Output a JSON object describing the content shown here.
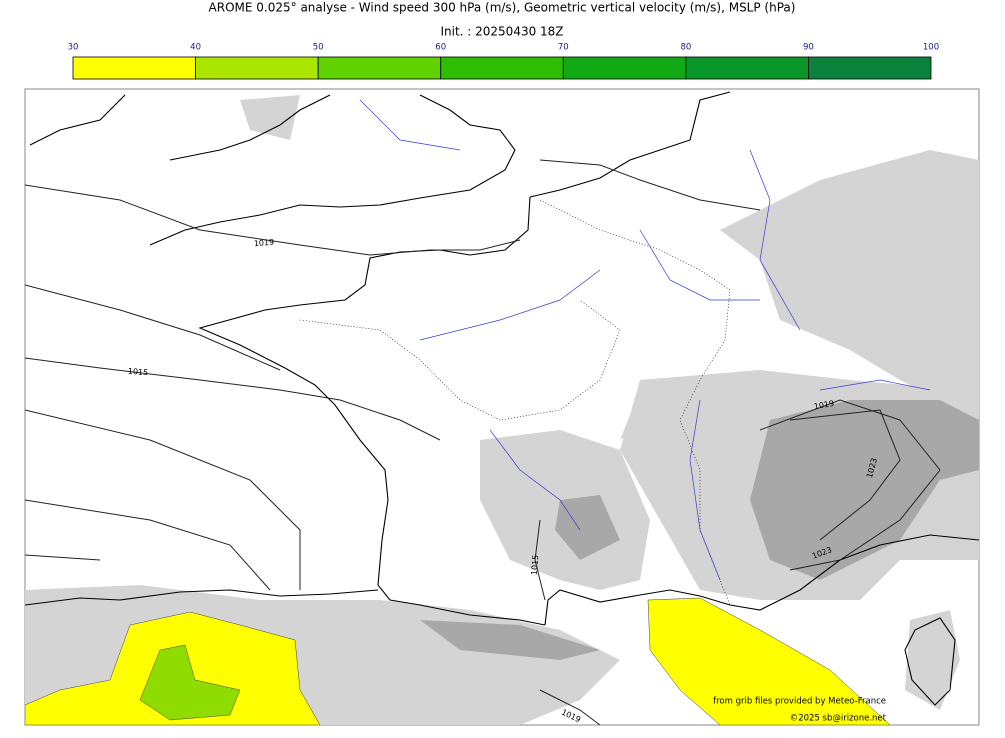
{
  "header": {
    "title": "AROME 0.025° analyse - Wind speed 300 hPa (m/s), Geometric vertical velocity (m/s), MSLP (hPa)",
    "init": "Init. : 20250430 18Z"
  },
  "colorbar": {
    "ticks": [
      30,
      40,
      50,
      60,
      70,
      80,
      90,
      100
    ],
    "colors": [
      "#ffff00",
      "#aae600",
      "#5fd200",
      "#2dbe00",
      "#12aa14",
      "#0a9628",
      "#0a823c",
      "#087450"
    ]
  },
  "isobar_labels": [
    "1019",
    "1015",
    "1019",
    "1015",
    "1023",
    "1023",
    "1019"
  ],
  "credits": {
    "source": "from grib files provided by Meteo-France",
    "copyright": "©2025 sb@irizone.net"
  }
}
